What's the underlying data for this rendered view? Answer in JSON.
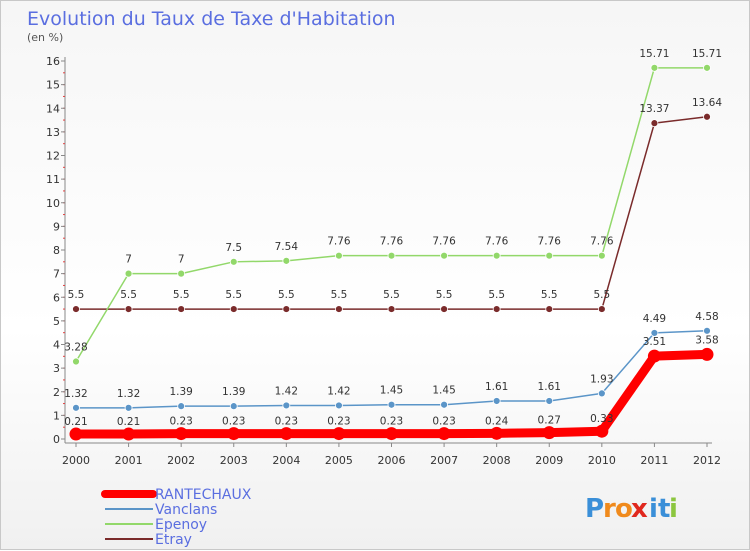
{
  "chart_data": {
    "type": "line",
    "title": "Evolution du Taux de Taxe d'Habitation",
    "subtitle": "(en %)",
    "xlabel": "",
    "ylabel": "",
    "ylim": [
      0,
      16
    ],
    "grid": false,
    "legend_position": "bottom-left",
    "categories": [
      "2000",
      "2001",
      "2002",
      "2003",
      "2004",
      "2005",
      "2006",
      "2007",
      "2008",
      "2009",
      "2010",
      "2011",
      "2012"
    ],
    "y_ticks": [
      0,
      1,
      2,
      3,
      4,
      5,
      6,
      7,
      8,
      9,
      10,
      11,
      12,
      13,
      14,
      15,
      16
    ],
    "series": [
      {
        "name": "RANTECHAUX",
        "color": "#ff0000",
        "values": [
          0.21,
          0.21,
          0.23,
          0.23,
          0.23,
          0.23,
          0.23,
          0.23,
          0.24,
          0.27,
          0.33,
          3.51,
          3.58
        ],
        "labels": [
          "0.21",
          "0.21",
          "0.23",
          "0.23",
          "0.23",
          "0.23",
          "0.23",
          "0.23",
          "0.24",
          "0.27",
          "0.33",
          "3.51",
          "3.58"
        ]
      },
      {
        "name": "Vanclans",
        "color": "#5b95c8",
        "values": [
          1.32,
          1.32,
          1.39,
          1.39,
          1.42,
          1.42,
          1.45,
          1.45,
          1.61,
          1.61,
          1.93,
          4.49,
          4.58
        ],
        "labels": [
          "1.32",
          "1.32",
          "1.39",
          "1.39",
          "1.42",
          "1.42",
          "1.45",
          "1.45",
          "1.61",
          "1.61",
          "1.93",
          "4.49",
          "4.58"
        ]
      },
      {
        "name": "Epenoy",
        "color": "#92d86a",
        "values": [
          3.28,
          7,
          7,
          7.5,
          7.54,
          7.76,
          7.76,
          7.76,
          7.76,
          7.76,
          7.76,
          15.71,
          15.71
        ],
        "labels": [
          "3.28",
          "7",
          "7",
          "7.5",
          "7.54",
          "7.76",
          "7.76",
          "7.76",
          "7.76",
          "7.76",
          "7.76",
          "15.71",
          "15.71"
        ]
      },
      {
        "name": "Etray",
        "color": "#7a2b2b",
        "values": [
          5.5,
          5.5,
          5.5,
          5.5,
          5.5,
          5.5,
          5.5,
          5.5,
          5.5,
          5.5,
          5.5,
          13.37,
          13.64
        ],
        "labels": [
          "5.5",
          "5.5",
          "5.5",
          "5.5",
          "5.5",
          "5.5",
          "5.5",
          "5.5",
          "5.5",
          "5.5",
          "5.5",
          "13.37",
          "13.64"
        ]
      }
    ]
  },
  "logo": {
    "text": "Proxiti",
    "letters": [
      "P",
      "r",
      "o",
      "x",
      "i",
      "t",
      "i"
    ],
    "colors": [
      "#3a8fd8",
      "#f08a1c",
      "#f08a1c",
      "#e0281e",
      "#3a8fd8",
      "#3a8fd8",
      "#8cc63f"
    ]
  }
}
